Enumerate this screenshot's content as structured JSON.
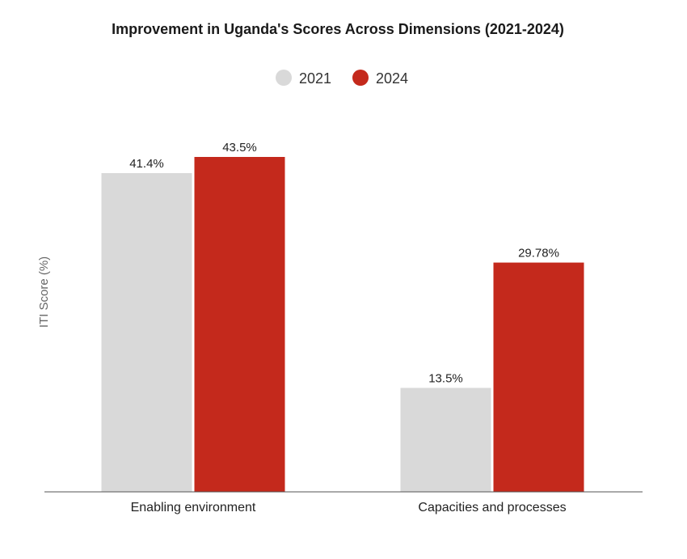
{
  "chart_data": {
    "type": "bar",
    "title": "Improvement in Uganda's Scores Across Dimensions (2021-2024)",
    "xlabel": "",
    "ylabel": "ITI Score (%)",
    "categories": [
      "Enabling environment",
      "Capacities and processes"
    ],
    "series": [
      {
        "name": "2021",
        "values": [
          41.4,
          13.5
        ],
        "labels": [
          "41.4%",
          "13.5%"
        ],
        "color": "#d9d9d9"
      },
      {
        "name": "2024",
        "values": [
          43.5,
          29.78
        ],
        "labels": [
          "43.5%",
          "29.78%"
        ],
        "color": "#c4291c"
      }
    ],
    "ylim": [
      0,
      43.5
    ],
    "grid": false,
    "legend": "top-center"
  }
}
